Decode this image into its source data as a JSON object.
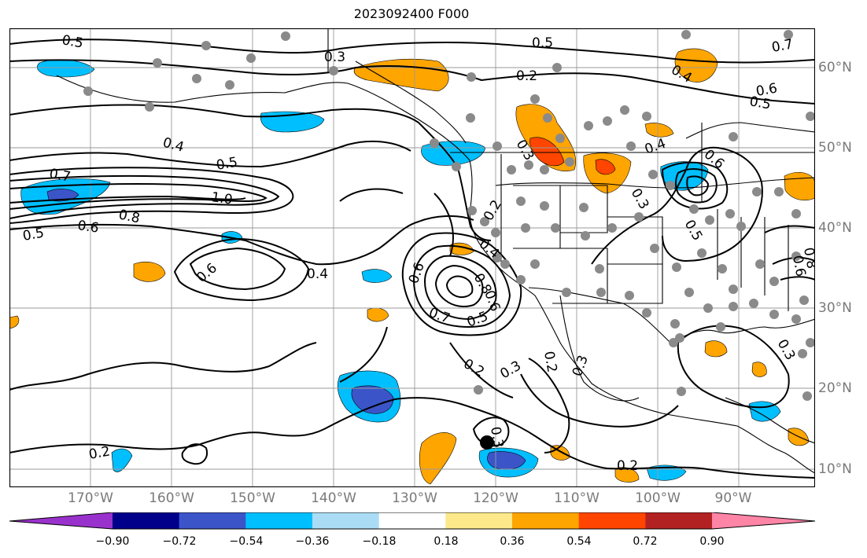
{
  "title": "2023092400 F000",
  "lat_labels": [
    "60°N",
    "50°N",
    "40°N",
    "30°N",
    "20°N",
    "10°N"
  ],
  "lon_labels": [
    "170°W",
    "160°W",
    "150°W",
    "140°W",
    "130°W",
    "120°W",
    "110°W",
    "100°W",
    "90°W"
  ],
  "colorbar": {
    "colors": [
      "#9932cc",
      "#00008b",
      "#3b55c9",
      "#00bfff",
      "#aadcf5",
      "#ffffff",
      "#fde98a",
      "#ffa500",
      "#ff4500",
      "#b22222",
      "#ff85a7"
    ],
    "labels": [
      "−0.90",
      "−0.72",
      "−0.54",
      "−0.36",
      "−0.18",
      "0.18",
      "0.36",
      "0.54",
      "0.72",
      "0.90"
    ]
  },
  "contour_labels": [
    "0.5",
    "0.3",
    "0.5",
    "0.2",
    "0.7",
    "0.4",
    "0.6",
    "0.5",
    "0.4",
    "0.5",
    "0.7",
    "1.0",
    "0.8",
    "0.6",
    "0.5",
    "0.6",
    "0.4",
    "0.3",
    "0.2",
    "0.4",
    "0.6",
    "0.8",
    "0.6",
    "0.7",
    "0.5",
    "0.2",
    "0.3",
    "0.2",
    "0.3",
    "0.3",
    "0.2",
    "0.2",
    "0.4",
    "0.6",
    "0.3",
    "0.5",
    "0.3",
    "0.6",
    "0.8"
  ]
}
